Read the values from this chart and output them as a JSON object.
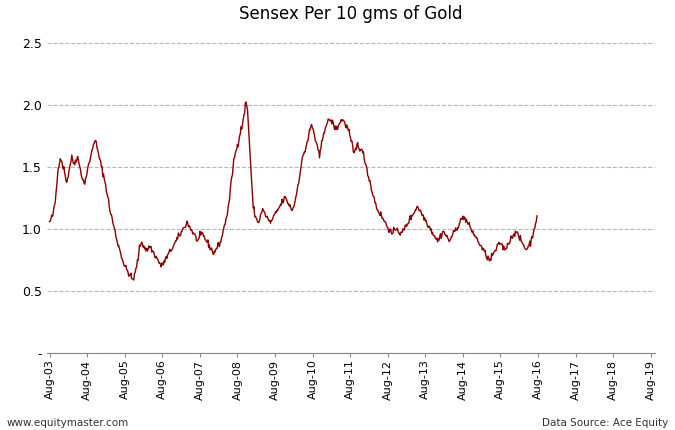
{
  "title": "Sensex Per 10 gms of Gold",
  "line_color": "#8B0000",
  "background_color": "#ffffff",
  "grid_color": "#b0b0b0",
  "ylim": [
    0,
    2.6
  ],
  "yticks": [
    0.0,
    0.5,
    1.0,
    1.5,
    2.0,
    2.5
  ],
  "ytick_labels": [
    "-",
    "0.5",
    "1.0",
    "1.5",
    "2.0",
    "2.5"
  ],
  "xlabel_bottom": "www.equitymaster.com",
  "xlabel_bottom_right": "Data Source: Ace Equity",
  "linewidth": 1.0,
  "weekly_values": [
    1.05,
    1.06,
    1.07,
    1.09,
    1.1,
    1.12,
    1.15,
    1.18,
    1.22,
    1.28,
    1.35,
    1.42,
    1.48,
    1.52,
    1.55,
    1.57,
    1.56,
    1.54,
    1.52,
    1.5,
    1.48,
    1.45,
    1.42,
    1.4,
    1.38,
    1.4,
    1.43,
    1.46,
    1.5,
    1.53,
    1.55,
    1.57,
    1.56,
    1.54,
    1.52,
    1.53,
    1.55,
    1.56,
    1.57,
    1.58,
    1.55,
    1.52,
    1.5,
    1.48,
    1.45,
    1.42,
    1.4,
    1.38,
    1.36,
    1.38,
    1.4,
    1.42,
    1.45,
    1.48,
    1.5,
    1.52,
    1.55,
    1.58,
    1.6,
    1.62,
    1.65,
    1.68,
    1.7,
    1.72,
    1.7,
    1.68,
    1.65,
    1.62,
    1.6,
    1.58,
    1.55,
    1.53,
    1.5,
    1.48,
    1.45,
    1.43,
    1.4,
    1.38,
    1.35,
    1.32,
    1.28,
    1.25,
    1.22,
    1.18,
    1.15,
    1.12,
    1.1,
    1.08,
    1.05,
    1.02,
    1.0,
    0.98,
    0.95,
    0.92,
    0.9,
    0.88,
    0.86,
    0.84,
    0.82,
    0.8,
    0.78,
    0.76,
    0.74,
    0.72,
    0.7,
    0.69,
    0.68,
    0.67,
    0.66,
    0.65,
    0.64,
    0.63,
    0.62,
    0.61,
    0.6,
    0.59,
    0.59,
    0.6,
    0.62,
    0.64,
    0.67,
    0.7,
    0.73,
    0.76,
    0.8,
    0.84,
    0.87,
    0.88,
    0.89,
    0.88,
    0.87,
    0.86,
    0.85,
    0.84,
    0.83,
    0.82,
    0.83,
    0.84,
    0.85,
    0.86,
    0.85,
    0.84,
    0.83,
    0.82,
    0.81,
    0.8,
    0.79,
    0.78,
    0.77,
    0.76,
    0.75,
    0.74,
    0.73,
    0.72,
    0.71,
    0.7,
    0.7,
    0.71,
    0.72,
    0.73,
    0.74,
    0.75,
    0.76,
    0.77,
    0.78,
    0.79,
    0.8,
    0.81,
    0.82,
    0.83,
    0.84,
    0.85,
    0.86,
    0.87,
    0.88,
    0.89,
    0.9,
    0.91,
    0.92,
    0.93,
    0.94,
    0.95,
    0.96,
    0.97,
    0.98,
    0.99,
    1.0,
    1.01,
    1.02,
    1.03,
    1.04,
    1.05,
    1.04,
    1.03,
    1.02,
    1.01,
    1.0,
    0.99,
    0.98,
    0.97,
    0.96,
    0.95,
    0.94,
    0.93,
    0.92,
    0.91,
    0.9,
    0.91,
    0.92,
    0.93,
    0.94,
    0.95,
    0.96,
    0.95,
    0.94,
    0.93,
    0.92,
    0.91,
    0.9,
    0.89,
    0.88,
    0.87,
    0.86,
    0.85,
    0.84,
    0.83,
    0.82,
    0.81,
    0.8,
    0.81,
    0.82,
    0.83,
    0.84,
    0.85,
    0.86,
    0.87,
    0.88,
    0.89,
    0.9,
    0.92,
    0.95,
    0.98,
    1.0,
    1.02,
    1.05,
    1.08,
    1.1,
    1.12,
    1.15,
    1.2,
    1.25,
    1.3,
    1.35,
    1.4,
    1.45,
    1.5,
    1.55,
    1.58,
    1.6,
    1.62,
    1.65,
    1.68,
    1.7,
    1.72,
    1.75,
    1.78,
    1.8,
    1.82,
    1.85,
    1.88,
    1.9,
    1.95,
    2.0,
    2.02,
    2.0,
    1.95,
    1.85,
    1.75,
    1.65,
    1.55,
    1.45,
    1.35,
    1.25,
    1.18,
    1.15,
    1.12,
    1.1,
    1.08,
    1.07,
    1.06,
    1.05,
    1.06,
    1.08,
    1.1,
    1.12,
    1.14,
    1.15,
    1.14,
    1.13,
    1.12,
    1.11,
    1.1,
    1.09,
    1.08,
    1.07,
    1.06,
    1.05,
    1.05,
    1.06,
    1.07,
    1.08,
    1.09,
    1.1,
    1.11,
    1.12,
    1.13,
    1.14,
    1.15,
    1.16,
    1.17,
    1.18,
    1.19,
    1.2,
    1.21,
    1.22,
    1.23,
    1.24,
    1.25,
    1.24,
    1.23,
    1.22,
    1.21,
    1.2,
    1.19,
    1.18,
    1.17,
    1.16,
    1.15,
    1.16,
    1.18,
    1.2,
    1.22,
    1.25,
    1.28,
    1.32,
    1.35,
    1.38,
    1.42,
    1.45,
    1.48,
    1.52,
    1.55,
    1.58,
    1.6,
    1.62,
    1.63,
    1.65,
    1.68,
    1.7,
    1.72,
    1.75,
    1.78,
    1.8,
    1.82,
    1.83,
    1.82,
    1.8,
    1.78,
    1.75,
    1.72,
    1.7,
    1.68,
    1.65,
    1.62,
    1.6,
    1.58,
    1.62,
    1.65,
    1.68,
    1.72,
    1.75,
    1.78,
    1.8,
    1.82,
    1.83,
    1.84,
    1.85,
    1.86,
    1.87,
    1.88,
    1.88,
    1.87,
    1.86,
    1.85,
    1.84,
    1.83,
    1.82,
    1.81,
    1.8,
    1.81,
    1.82,
    1.83,
    1.84,
    1.85,
    1.86,
    1.87,
    1.88,
    1.88,
    1.87,
    1.86,
    1.85,
    1.84,
    1.83,
    1.82,
    1.81,
    1.8,
    1.78,
    1.75,
    1.72,
    1.7,
    1.68,
    1.65,
    1.62,
    1.6,
    1.62,
    1.63,
    1.65,
    1.67,
    1.68,
    1.67,
    1.66,
    1.65,
    1.64,
    1.63,
    1.62,
    1.61,
    1.6,
    1.58,
    1.55,
    1.52,
    1.5,
    1.48,
    1.45,
    1.42,
    1.4,
    1.38,
    1.35,
    1.32,
    1.3,
    1.28,
    1.26,
    1.24,
    1.22,
    1.2,
    1.18,
    1.16,
    1.15,
    1.14,
    1.13,
    1.12,
    1.11,
    1.1,
    1.09,
    1.08,
    1.07,
    1.06,
    1.05,
    1.04,
    1.03,
    1.02,
    1.01,
    1.0,
    0.99,
    0.98,
    0.97,
    0.96,
    0.95,
    0.96,
    0.97,
    0.98,
    0.99,
    1.0,
    1.01,
    1.0,
    0.99,
    0.98,
    0.97,
    0.96,
    0.95,
    0.96,
    0.97,
    0.98,
    0.99,
    1.0,
    1.01,
    1.02,
    1.03,
    1.04,
    1.05,
    1.06,
    1.07,
    1.08,
    1.09,
    1.1,
    1.11,
    1.12,
    1.13,
    1.14,
    1.15,
    1.16,
    1.17,
    1.18,
    1.17,
    1.16,
    1.15,
    1.14,
    1.13,
    1.12,
    1.11,
    1.1,
    1.09,
    1.08,
    1.07,
    1.06,
    1.05,
    1.04,
    1.03,
    1.02,
    1.01,
    1.0,
    0.99,
    0.98,
    0.97,
    0.96,
    0.95,
    0.94,
    0.93,
    0.92,
    0.91,
    0.9,
    0.91,
    0.92,
    0.93,
    0.94,
    0.95,
    0.96,
    0.97,
    0.98,
    0.97,
    0.96,
    0.95,
    0.94,
    0.93,
    0.92,
    0.91,
    0.9,
    0.91,
    0.92,
    0.93,
    0.94,
    0.95,
    0.96,
    0.97,
    0.98,
    0.99,
    1.0,
    1.01,
    1.02,
    1.03,
    1.04,
    1.05,
    1.06,
    1.07,
    1.08,
    1.09,
    1.1,
    1.09,
    1.08,
    1.07,
    1.06,
    1.05,
    1.04,
    1.03,
    1.02,
    1.01,
    1.0,
    0.99,
    0.98,
    0.97,
    0.96,
    0.95,
    0.94,
    0.93,
    0.92,
    0.91,
    0.9,
    0.89,
    0.88,
    0.87,
    0.86,
    0.85,
    0.84,
    0.83,
    0.82,
    0.81,
    0.8,
    0.79,
    0.78,
    0.77,
    0.76,
    0.75,
    0.74,
    0.75,
    0.76,
    0.77,
    0.78,
    0.79,
    0.8,
    0.81,
    0.82,
    0.83,
    0.84,
    0.85,
    0.86,
    0.87,
    0.88,
    0.89,
    0.88,
    0.87,
    0.86,
    0.85,
    0.84,
    0.83,
    0.84,
    0.85,
    0.86,
    0.87,
    0.88,
    0.89,
    0.9,
    0.91,
    0.92,
    0.93,
    0.94,
    0.95,
    0.96,
    0.97,
    0.98,
    0.97,
    0.96,
    0.95,
    0.94,
    0.93,
    0.92,
    0.91,
    0.9,
    0.89,
    0.88,
    0.87,
    0.86,
    0.85,
    0.84,
    0.83,
    0.84,
    0.85,
    0.86,
    0.87,
    0.88,
    0.89,
    0.9,
    0.92,
    0.95,
    0.97,
    1.0,
    1.02,
    1.05,
    1.07,
    1.08
  ]
}
